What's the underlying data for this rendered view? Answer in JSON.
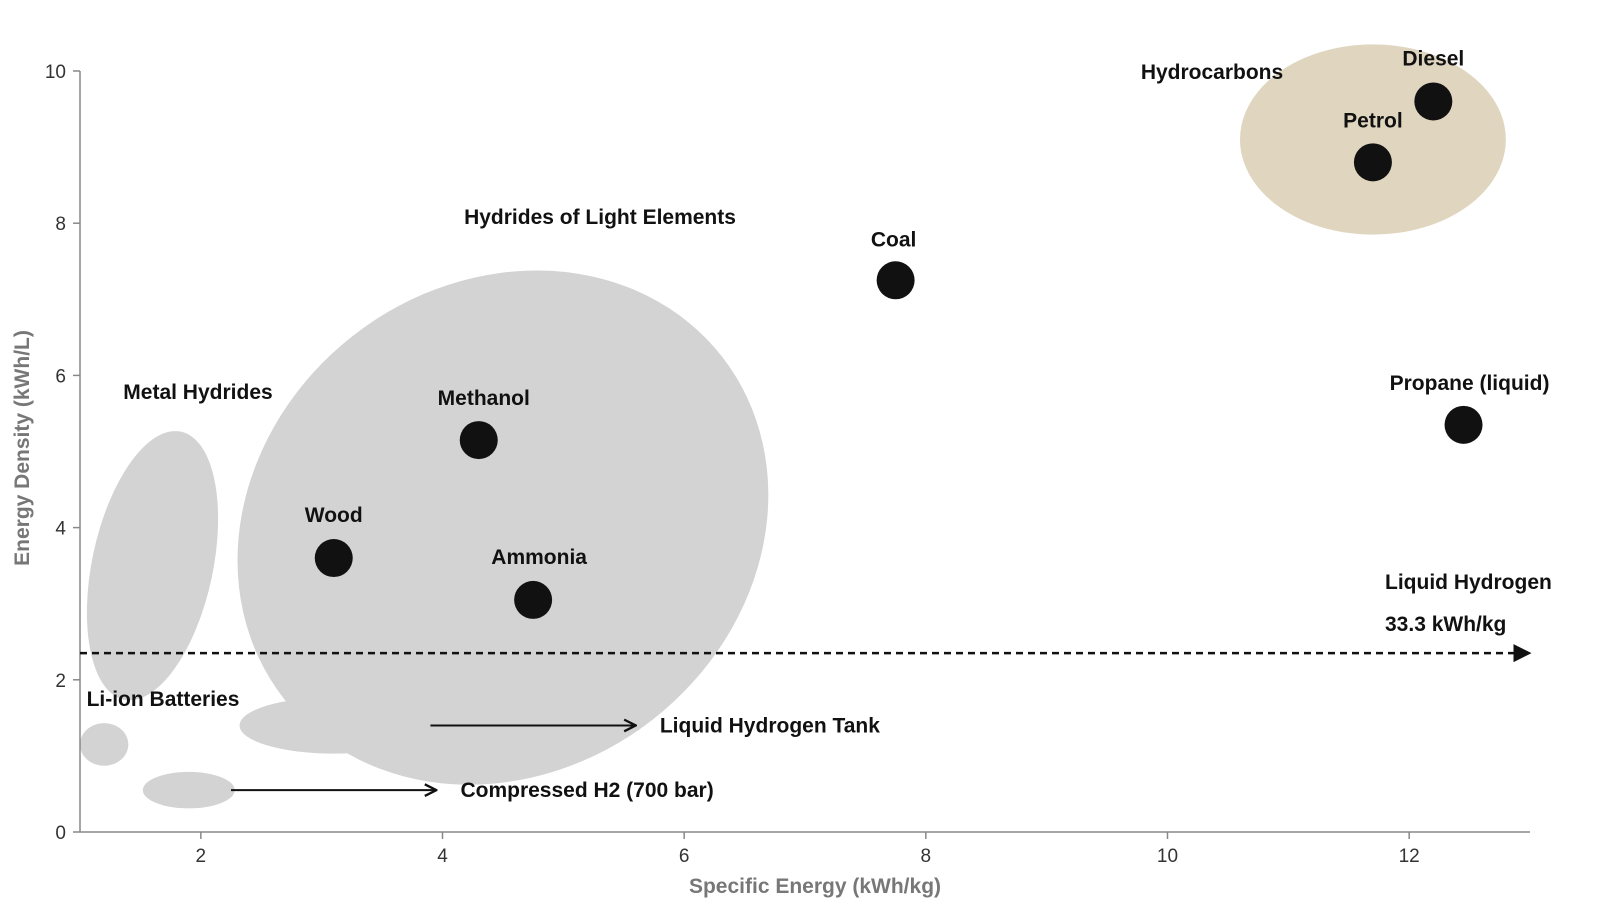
{
  "chart_data": {
    "type": "scatter",
    "title": "",
    "xlabel": "Specific Energy (kWh/kg)",
    "ylabel": "Energy Density (kWh/L)",
    "xlim": [
      1,
      13
    ],
    "ylim": [
      0,
      10
    ],
    "x_ticks": [
      "2",
      "4",
      "6",
      "8",
      "10",
      "12"
    ],
    "y_ticks": [
      "0",
      "2",
      "4",
      "6",
      "8",
      "10"
    ],
    "grid": false,
    "colors": {
      "point": "#111111",
      "region": "#d3d3d3",
      "hydrocarbons": "#e0d5bf"
    },
    "points": [
      {
        "label": "Diesel",
        "x": 12.2,
        "y": 9.6
      },
      {
        "label": "Petrol",
        "x": 11.7,
        "y": 8.8
      },
      {
        "label": "Coal",
        "x": 7.75,
        "y": 7.25
      },
      {
        "label": "Propane (liquid)",
        "x": 12.45,
        "y": 5.35
      },
      {
        "label": "Methanol",
        "x": 4.3,
        "y": 5.15
      },
      {
        "label": "Wood",
        "x": 3.1,
        "y": 3.6
      },
      {
        "label": "Ammonia",
        "x": 4.75,
        "y": 3.05
      }
    ],
    "regions": [
      {
        "label": "Hydrocarbons",
        "color": "#e0d5bf",
        "cx": 11.7,
        "cy": 9.1,
        "rx": 1.1,
        "ry": 1.25
      },
      {
        "label": "Hydrides of Light Elements",
        "color": "#d3d3d3",
        "cx": 4.5,
        "cy": 4.0,
        "rx": 2.3,
        "ry": 3.2
      },
      {
        "label": "Metal Hydrides",
        "color": "#d3d3d3",
        "cx": 1.6,
        "cy": 3.5,
        "rx": 0.5,
        "ry": 1.8
      },
      {
        "label": "Li-ion Batteries",
        "color": "#d3d3d3",
        "cx": 1.2,
        "cy": 1.15,
        "rx": 0.2,
        "ry": 0.28
      },
      {
        "label": "",
        "color": "#d3d3d3",
        "cx": 3.1,
        "cy": 1.4,
        "rx": 0.78,
        "ry": 0.37
      },
      {
        "label": "",
        "color": "#d3d3d3",
        "cx": 1.9,
        "cy": 0.55,
        "rx": 0.38,
        "ry": 0.24
      }
    ],
    "annotations": [
      {
        "label": "Liquid Hydrogen Tank",
        "from_x": 3.9,
        "to_x": 5.6,
        "y": 1.4,
        "style": "solid"
      },
      {
        "label": "Compressed H2 (700 bar)",
        "from_x": 2.25,
        "to_x": 3.95,
        "y": 0.55,
        "style": "solid"
      },
      {
        "label": "Liquid Hydrogen",
        "sublabel": "33.3 kWh/kg",
        "from_x": 1.0,
        "to_x": 13.0,
        "y": 2.35,
        "style": "dashed"
      }
    ]
  }
}
